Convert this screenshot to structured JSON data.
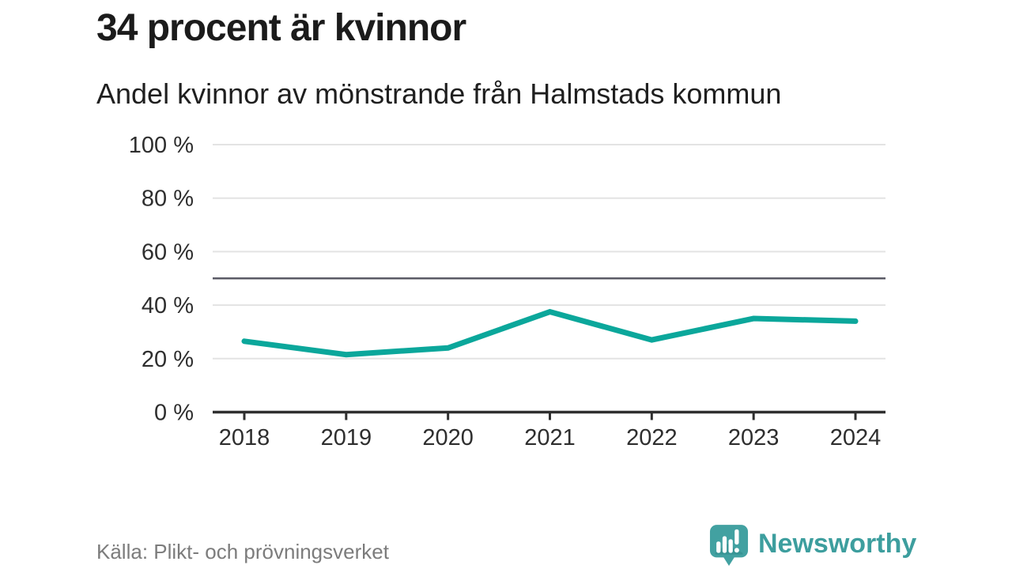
{
  "header": {
    "title": "34 procent är kvinnor",
    "subtitle": "Andel kvinnor av mönstrande från Halmstads kommun"
  },
  "chart_data": {
    "type": "line",
    "title": "34 procent är kvinnor",
    "subtitle": "Andel kvinnor av mönstrande från Halmstads kommun",
    "x": [
      2018,
      2019,
      2020,
      2021,
      2022,
      2023,
      2024
    ],
    "xtick_labels": [
      "2018",
      "2019",
      "2020",
      "2021",
      "2022",
      "2023",
      "2024"
    ],
    "series": [
      {
        "name": "Andel kvinnor av mönstrande",
        "values": [
          26.5,
          21.5,
          24,
          37.5,
          27,
          35,
          34
        ]
      }
    ],
    "ylim": [
      0,
      100
    ],
    "yticks": [
      0,
      20,
      40,
      60,
      80,
      100
    ],
    "ytick_labels": [
      "0 %",
      "20 %",
      "40 %",
      "60 %",
      "80 %",
      "100 %"
    ],
    "reference_line": 50,
    "grid": true,
    "legend": "none",
    "line_color": "#0ba79b"
  },
  "footer": {
    "source": "Källa: Plikt- och prövningsverket",
    "brand": {
      "name": "Newsworthy",
      "icon": "newsworthy-logo-icon"
    }
  },
  "colors": {
    "accent_line": "#0ba79b",
    "grid": "#e3e3e3",
    "reference": "#5b5b66",
    "axis": "#2f2f2f",
    "title_text": "#1b1b1b",
    "tick_text": "#2e2e2e",
    "muted_text": "#7c7c7c",
    "brand_text": "#3d9e9e",
    "brand_bubble": "#42a1a1",
    "brand_bubble_shade": "#2f8b8b",
    "background": "#ffffff"
  }
}
